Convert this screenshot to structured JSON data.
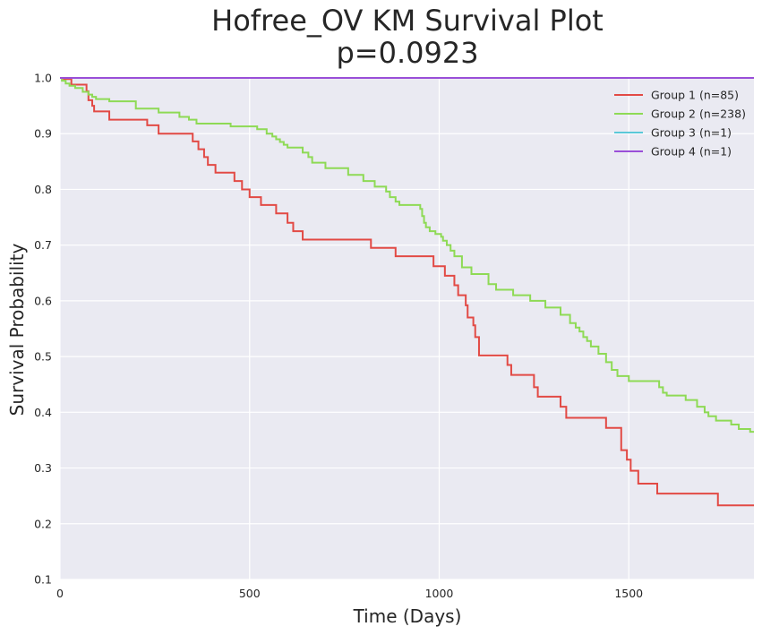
{
  "chart_data": {
    "type": "line",
    "title": "Hofree_OV KM Survival Plot",
    "subtitle": "p=0.0923",
    "xlabel": "Time (Days)",
    "ylabel": "Survival Probability",
    "xlim": [
      0,
      1830
    ],
    "ylim": [
      0.1,
      1.0
    ],
    "xticks": [
      0,
      500,
      1000,
      1500
    ],
    "xtick_labels": [
      "0",
      "500",
      "1000",
      "1500"
    ],
    "yticks": [
      0.1,
      0.2,
      0.3,
      0.4,
      0.5,
      0.6,
      0.7,
      0.8,
      0.9,
      1.0
    ],
    "ytick_labels": [
      "0.1",
      "0.2",
      "0.3",
      "0.4",
      "0.5",
      "0.6",
      "0.7",
      "0.8",
      "0.9",
      "1.0"
    ],
    "grid": true,
    "legend_position": "top-right",
    "background": "#EAEAF2",
    "series": [
      {
        "name": "Group 1 (n=85)",
        "color": "#E24A45",
        "x": [
          0,
          10,
          30,
          70,
          75,
          85,
          90,
          130,
          230,
          260,
          350,
          355,
          365,
          380,
          390,
          410,
          460,
          480,
          500,
          530,
          570,
          600,
          615,
          640,
          820,
          885,
          985,
          1015,
          1040,
          1050,
          1070,
          1075,
          1090,
          1095,
          1105,
          1180,
          1190,
          1250,
          1260,
          1320,
          1335,
          1440,
          1480,
          1495,
          1505,
          1525,
          1575,
          1735,
          1830
        ],
        "y": [
          1.0,
          0.998,
          0.988,
          0.976,
          0.96,
          0.95,
          0.94,
          0.925,
          0.915,
          0.9,
          0.886,
          0.886,
          0.872,
          0.858,
          0.844,
          0.83,
          0.815,
          0.8,
          0.786,
          0.772,
          0.757,
          0.74,
          0.725,
          0.71,
          0.695,
          0.68,
          0.662,
          0.645,
          0.628,
          0.61,
          0.592,
          0.57,
          0.556,
          0.535,
          0.502,
          0.485,
          0.467,
          0.445,
          0.428,
          0.41,
          0.39,
          0.372,
          0.332,
          0.315,
          0.295,
          0.272,
          0.254,
          0.233,
          0.233
        ]
      },
      {
        "name": "Group 2 (n=238)",
        "color": "#8EDA55",
        "x": [
          0,
          5,
          15,
          25,
          40,
          60,
          75,
          85,
          95,
          130,
          200,
          260,
          315,
          340,
          360,
          450,
          520,
          545,
          560,
          570,
          580,
          590,
          600,
          640,
          655,
          665,
          700,
          760,
          800,
          830,
          860,
          870,
          885,
          895,
          950,
          955,
          960,
          965,
          975,
          990,
          1005,
          1010,
          1020,
          1030,
          1040,
          1060,
          1085,
          1130,
          1150,
          1195,
          1240,
          1280,
          1320,
          1345,
          1360,
          1370,
          1380,
          1390,
          1400,
          1420,
          1440,
          1455,
          1470,
          1500,
          1580,
          1590,
          1600,
          1650,
          1680,
          1700,
          1710,
          1730,
          1770,
          1790,
          1820,
          1830
        ],
        "y": [
          1.0,
          0.995,
          0.99,
          0.986,
          0.982,
          0.975,
          0.97,
          0.966,
          0.962,
          0.958,
          0.945,
          0.938,
          0.93,
          0.925,
          0.918,
          0.913,
          0.908,
          0.9,
          0.895,
          0.89,
          0.885,
          0.88,
          0.875,
          0.866,
          0.858,
          0.848,
          0.838,
          0.826,
          0.815,
          0.805,
          0.796,
          0.786,
          0.778,
          0.772,
          0.765,
          0.752,
          0.74,
          0.732,
          0.725,
          0.72,
          0.715,
          0.708,
          0.7,
          0.69,
          0.68,
          0.66,
          0.648,
          0.63,
          0.62,
          0.61,
          0.6,
          0.588,
          0.575,
          0.56,
          0.552,
          0.545,
          0.535,
          0.528,
          0.518,
          0.505,
          0.49,
          0.476,
          0.465,
          0.456,
          0.445,
          0.435,
          0.43,
          0.422,
          0.41,
          0.4,
          0.393,
          0.385,
          0.378,
          0.37,
          0.365,
          0.365
        ]
      },
      {
        "name": "Group 3 (n=1)",
        "color": "#5BC8D8",
        "x": [
          0,
          1830
        ],
        "y": [
          1.0,
          1.0
        ]
      },
      {
        "name": "Group 4 (n=1)",
        "color": "#9A4FD8",
        "x": [
          0,
          1830
        ],
        "y": [
          1.0,
          1.0
        ]
      }
    ]
  }
}
